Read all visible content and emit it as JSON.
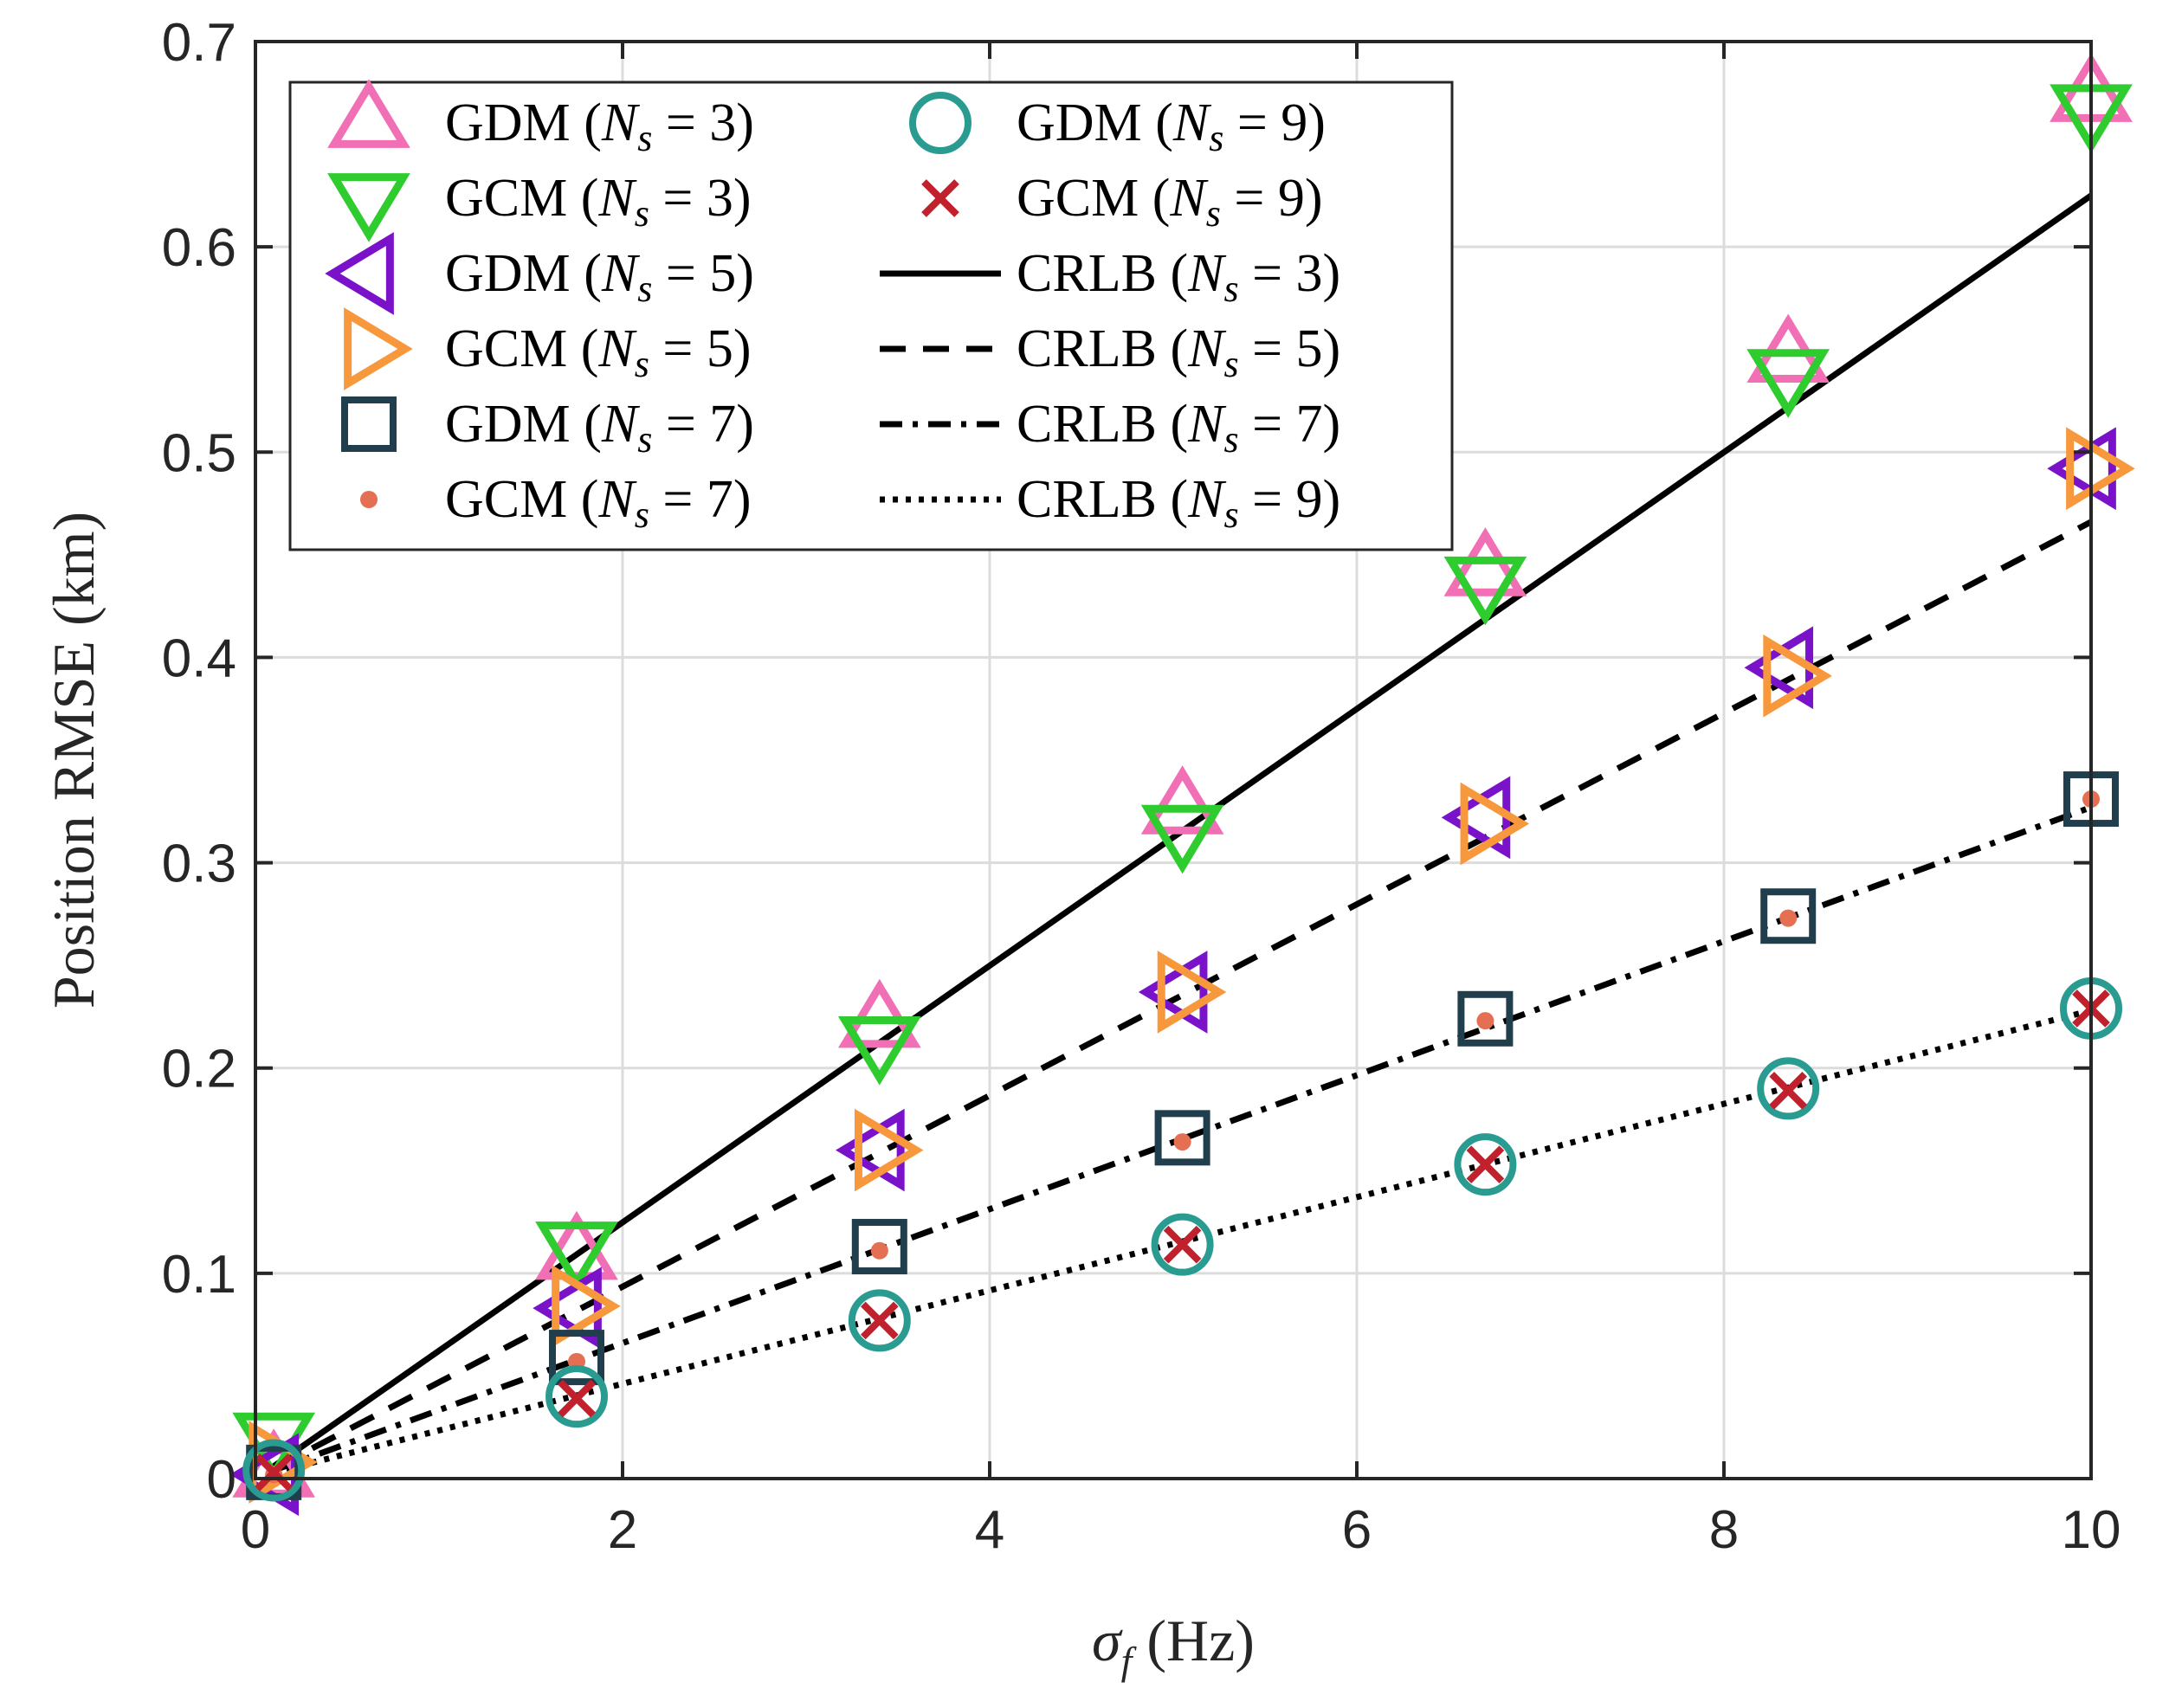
{
  "chart_data": {
    "type": "line",
    "title": "",
    "xlabel_symbol": "σ",
    "xlabel_subscript": "f",
    "xlabel_unit": "(Hz)",
    "ylabel": "Position RMSE (km)",
    "xlim": [
      0,
      10
    ],
    "ylim": [
      0,
      0.7
    ],
    "xticks": [
      0,
      2,
      4,
      6,
      8,
      10
    ],
    "yticks": [
      0,
      0.1,
      0.2,
      0.3,
      0.4,
      0.5,
      0.6,
      0.7
    ],
    "xtick_labels": [
      "0",
      "2",
      "4",
      "6",
      "8",
      "10"
    ],
    "ytick_labels": [
      "0",
      "0.1",
      "0.2",
      "0.3",
      "0.4",
      "0.5",
      "0.6",
      "0.7"
    ],
    "grid": true,
    "legend_position": "top-left",
    "x": [
      0.1,
      1.75,
      3.4,
      5.05,
      6.7,
      8.35,
      10
    ],
    "series": [
      {
        "name": "GDM (N_s = 3)",
        "method": "GDM",
        "ns": "3",
        "marker": "triangle-up",
        "color": "#f16fb4",
        "values": [
          0.003,
          0.109,
          0.222,
          0.326,
          0.442,
          0.546,
          0.673
        ]
      },
      {
        "name": "GCM (N_s = 3)",
        "method": "GCM",
        "ns": "3",
        "marker": "triangle-down",
        "color": "#2fcc2f",
        "values": [
          0.02,
          0.113,
          0.213,
          0.316,
          0.437,
          0.538,
          0.667
        ]
      },
      {
        "name": "GDM (N_s = 5)",
        "method": "GDM",
        "ns": "5",
        "marker": "triangle-left",
        "color": "#7a12c9",
        "values": [
          0.002,
          0.083,
          0.16,
          0.237,
          0.322,
          0.395,
          0.492
        ]
      },
      {
        "name": "GCM (N_s = 5)",
        "method": "GCM",
        "ns": "5",
        "marker": "triangle-right",
        "color": "#f7983c",
        "values": [
          0.008,
          0.084,
          0.16,
          0.237,
          0.319,
          0.391,
          0.492
        ]
      },
      {
        "name": "GDM (N_s = 7)",
        "method": "GDM",
        "ns": "7",
        "marker": "square",
        "color": "#213e4c",
        "values": [
          0.003,
          0.059,
          0.113,
          0.166,
          0.224,
          0.274,
          0.331
        ]
      },
      {
        "name": "GCM (N_s = 7)",
        "method": "GCM",
        "ns": "7",
        "marker": "dot",
        "color": "#e56f52",
        "values": [
          0.002,
          0.057,
          0.111,
          0.164,
          0.223,
          0.273,
          0.331
        ]
      },
      {
        "name": "GDM (N_s = 9)",
        "method": "GDM",
        "ns": "9",
        "marker": "circle",
        "color": "#2a9b91",
        "values": [
          0.004,
          0.04,
          0.077,
          0.114,
          0.153,
          0.19,
          0.229
        ]
      },
      {
        "name": "GCM (N_s = 9)",
        "method": "GCM",
        "ns": "9",
        "marker": "x",
        "color": "#c0212d",
        "values": [
          0.003,
          0.039,
          0.077,
          0.114,
          0.153,
          0.189,
          0.229
        ]
      },
      {
        "name": "CRLB (N_s = 3)",
        "method": "CRLB",
        "ns": "3",
        "line_style": "solid",
        "color": "#000000",
        "x": [
          0.1,
          10
        ],
        "values": [
          0.006,
          0.625
        ]
      },
      {
        "name": "CRLB (N_s = 5)",
        "method": "CRLB",
        "ns": "5",
        "line_style": "dashed",
        "color": "#000000",
        "x": [
          0.1,
          10
        ],
        "values": [
          0.005,
          0.466
        ]
      },
      {
        "name": "CRLB (N_s = 7)",
        "method": "CRLB",
        "ns": "7",
        "line_style": "dashdot",
        "color": "#000000",
        "x": [
          0.1,
          10
        ],
        "values": [
          0.004,
          0.327
        ]
      },
      {
        "name": "CRLB (N_s = 9)",
        "method": "CRLB",
        "ns": "9",
        "line_style": "dotted",
        "color": "#000000",
        "x": [
          0.1,
          10
        ],
        "values": [
          0.003,
          0.228
        ]
      }
    ]
  }
}
